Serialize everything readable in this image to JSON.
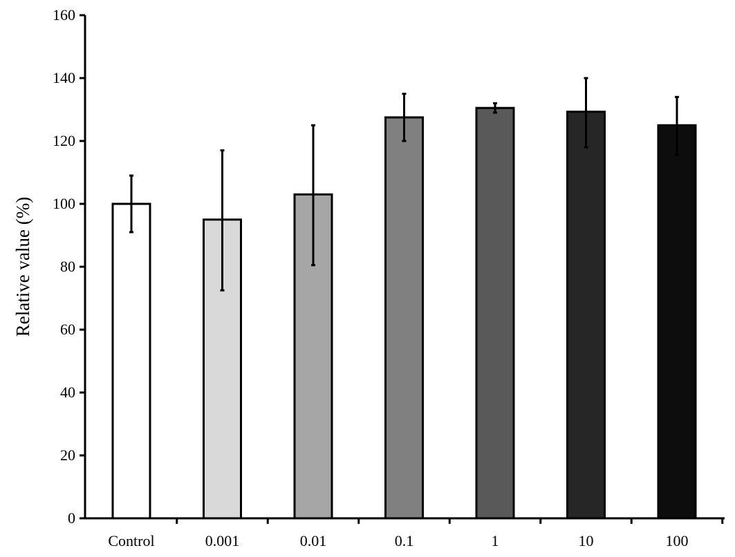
{
  "chart_data": {
    "type": "bar",
    "title": "",
    "xlabel": "",
    "ylabel": "Relative value (%)",
    "ylim": [
      0,
      160
    ],
    "yticks": [
      0,
      20,
      40,
      60,
      80,
      100,
      120,
      140,
      160
    ],
    "grid": false,
    "categories": [
      "Control",
      "0.001",
      "0.01",
      "0.1",
      "1",
      "10",
      "100"
    ],
    "values": [
      100,
      95,
      103,
      127.5,
      130.5,
      129.3,
      125
    ],
    "error": [
      [
        91,
        109
      ],
      [
        72.5,
        117
      ],
      [
        80.5,
        125
      ],
      [
        120,
        135
      ],
      [
        129,
        132
      ],
      [
        118,
        140
      ],
      [
        115.5,
        134
      ]
    ],
    "colors": [
      "#ffffff",
      "#d9d9d9",
      "#a6a6a6",
      "#808080",
      "#595959",
      "#262626",
      "#0d0d0d"
    ]
  }
}
